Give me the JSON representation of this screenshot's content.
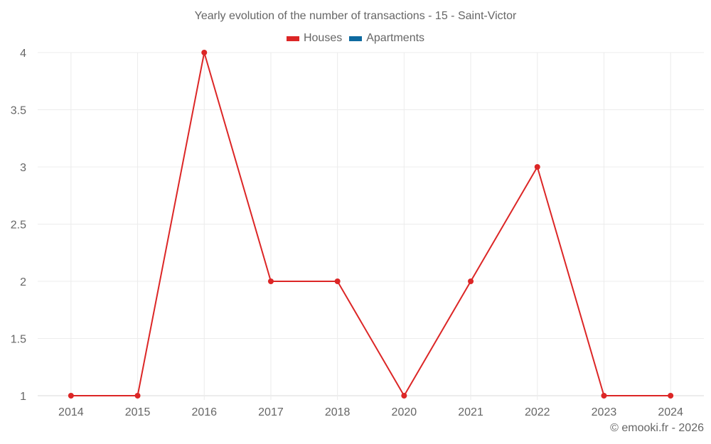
{
  "title": "Yearly evolution of the number of transactions - 15 - Saint-Victor",
  "legend": [
    {
      "label": "Houses",
      "color": "#dc2626"
    },
    {
      "label": "Apartments",
      "color": "#0e6aa0"
    }
  ],
  "credit": "© emooki.fr - 2026",
  "chart_data": {
    "type": "line",
    "title": "Yearly evolution of the number of transactions - 15 - Saint-Victor",
    "xlabel": "",
    "ylabel": "",
    "categories": [
      "2014",
      "2015",
      "2016",
      "2017",
      "2018",
      "2020",
      "2021",
      "2022",
      "2023",
      "2024"
    ],
    "series": [
      {
        "name": "Houses",
        "color": "#dc2626",
        "values": [
          1,
          1,
          4,
          2,
          2,
          1,
          2,
          3,
          1,
          1
        ]
      },
      {
        "name": "Apartments",
        "color": "#0e6aa0",
        "values": []
      }
    ],
    "ylim": [
      1,
      4
    ],
    "yticks": [
      "1",
      "1.5",
      "2",
      "2.5",
      "3",
      "3.5",
      "4"
    ],
    "grid": true,
    "legend_position": "top"
  }
}
